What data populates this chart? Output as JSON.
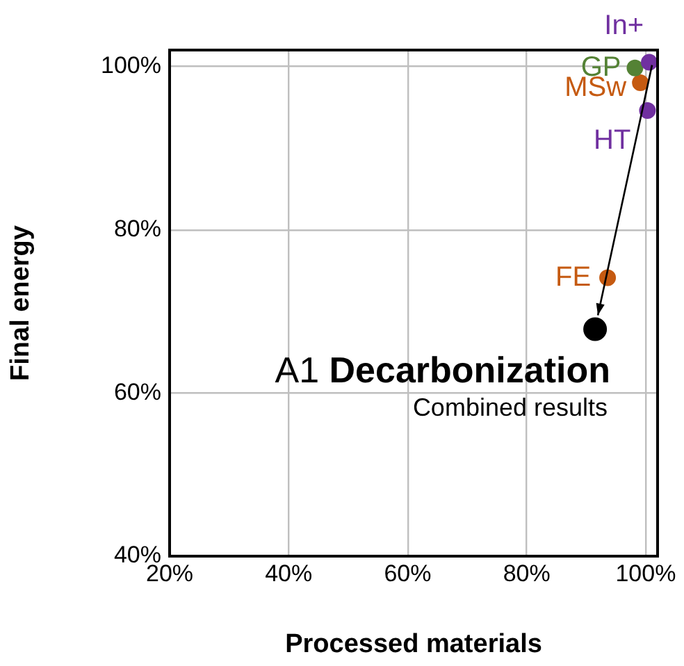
{
  "chart_data": {
    "type": "scatter",
    "title": "A1 Decarbonization",
    "subtitle": "Combined results",
    "xlabel": "Processed materials",
    "ylabel": "Final energy",
    "xlim": [
      20,
      102
    ],
    "ylim": [
      40,
      102
    ],
    "xticks": [
      {
        "value": 20,
        "label": "20%"
      },
      {
        "value": 40,
        "label": "40%"
      },
      {
        "value": 60,
        "label": "60%"
      },
      {
        "value": 80,
        "label": "80%"
      },
      {
        "value": 100,
        "label": "100%"
      }
    ],
    "yticks": [
      {
        "value": 40,
        "label": "40%"
      },
      {
        "value": 60,
        "label": "60%"
      },
      {
        "value": 80,
        "label": "80%"
      },
      {
        "value": 100,
        "label": "100%"
      }
    ],
    "grid": true,
    "legend": false,
    "marker": "circle",
    "series": [
      {
        "name": "In+",
        "color": "#7030a0",
        "x": [
          100.6
        ],
        "values": [
          100.5
        ]
      },
      {
        "name": "GP",
        "color": "#548235",
        "x": [
          98.2
        ],
        "values": [
          99.8
        ]
      },
      {
        "name": "MSw",
        "color": "#c55a11",
        "x": [
          99.1
        ],
        "values": [
          98.0
        ]
      },
      {
        "name": "HT",
        "color": "#7030a0",
        "x": [
          100.3
        ],
        "values": [
          94.6
        ]
      },
      {
        "name": "FE",
        "color": "#c55a11",
        "x": [
          93.6
        ],
        "values": [
          74.1
        ]
      },
      {
        "color": "#000000",
        "x": [
          91.5
        ],
        "values": [
          67.8
        ]
      }
    ]
  }
}
